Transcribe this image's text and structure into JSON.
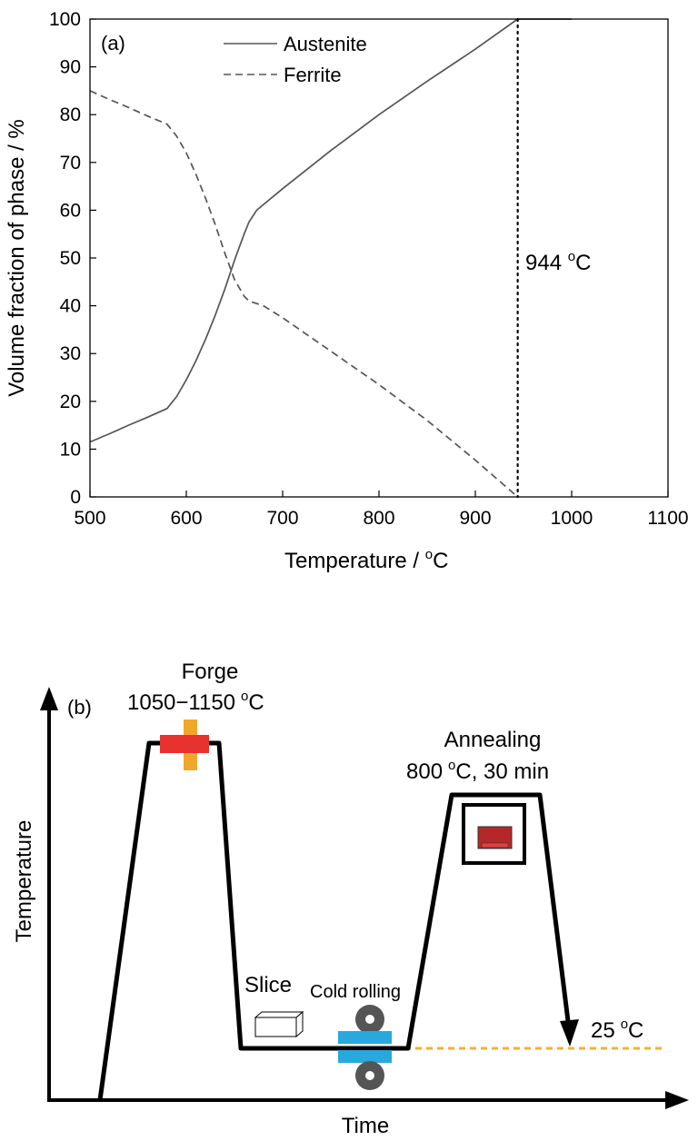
{
  "chart_data": [
    {
      "type": "line",
      "panel_label": "(a)",
      "xlabel": "Temperature / °C",
      "ylabel": "Volume fraction of phase / %",
      "xlim": [
        500,
        1100
      ],
      "ylim": [
        0,
        100
      ],
      "xticks": [
        "500",
        "600",
        "700",
        "800",
        "900",
        "1000",
        "1100"
      ],
      "yticks": [
        "0",
        "10",
        "20",
        "30",
        "40",
        "50",
        "60",
        "70",
        "80",
        "90",
        "100"
      ],
      "legend_position": "top-center",
      "series": [
        {
          "name": "Austenite",
          "style": "solid",
          "color": "#555555",
          "x": [
            500,
            520,
            540,
            560,
            580,
            590,
            600,
            610,
            620,
            630,
            640,
            650,
            660,
            665,
            673,
            700,
            750,
            800,
            850,
            900,
            944,
            1000
          ],
          "y": [
            11.5,
            13.2,
            15,
            16.7,
            18.5,
            21,
            24.5,
            28.5,
            33,
            38,
            43.5,
            49.5,
            55,
            57.5,
            60,
            64.5,
            72.5,
            80,
            87,
            93.7,
            100,
            100
          ]
        },
        {
          "name": "Ferrite",
          "style": "dashed",
          "color": "#555555",
          "x": [
            500,
            520,
            540,
            560,
            580,
            590,
            600,
            610,
            620,
            630,
            640,
            650,
            660,
            665,
            680,
            700,
            750,
            800,
            850,
            900,
            944
          ],
          "y": [
            85,
            83.2,
            81.5,
            79.7,
            78,
            75.5,
            72,
            67.5,
            62.5,
            57,
            51,
            45.5,
            42,
            41,
            40,
            37.5,
            30.5,
            23.5,
            16,
            7.7,
            0
          ]
        }
      ],
      "annotations": [
        {
          "type": "vline",
          "x": 944,
          "style": "dotted",
          "label": "944 °C"
        }
      ]
    },
    {
      "type": "line",
      "panel_label": "(b)",
      "xlabel": "Time",
      "ylabel": "Temperature",
      "steps": [
        {
          "label": "Forge",
          "value": "1050−1150 °C"
        },
        {
          "label": "Slice"
        },
        {
          "label": "Cold rolling"
        },
        {
          "label": "Annealing",
          "value": "800 °C, 30 min"
        },
        {
          "label": "25 °C"
        }
      ],
      "colors": {
        "profile": "#000000",
        "baseline": "#f0b23a",
        "forge_hot": "#e8322f",
        "forge_orange": "#f0a82c",
        "roller_plate": "#29a8de",
        "roller": "#555555",
        "furnace_sample": "#b4282a"
      }
    }
  ],
  "ui": {
    "a_label": "(a)",
    "legend_austenite": "Austenite",
    "legend_ferrite": "Ferrite",
    "vline_label": "944 °C",
    "a_xlabel_text": "Temperature / ",
    "a_xlabel_deg": "o",
    "a_xlabel_unit": "C",
    "a_ylabel": "Volume fraction of phase / %",
    "b_label": "(b)",
    "b_xlabel": "Time",
    "b_ylabel": "Temperature",
    "forge_title": "Forge",
    "forge_temp": "1050−1150",
    "forge_unit": "C",
    "anneal_title": "Annealing",
    "anneal_temp": "800",
    "anneal_unit": "C, 30 min",
    "slice_label": "Slice",
    "cold_label": "Cold rolling",
    "room_temp": "25",
    "room_unit": "C",
    "deg": "o"
  }
}
